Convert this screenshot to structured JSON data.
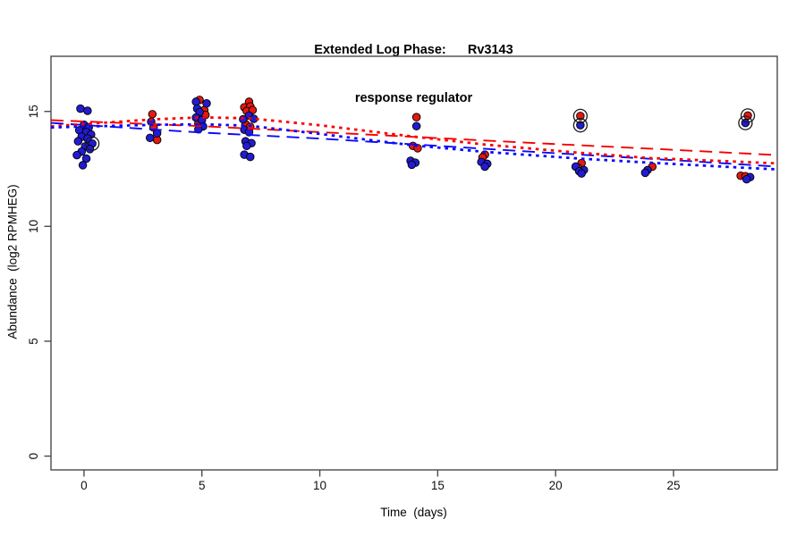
{
  "title": {
    "line1": "Extended Log Phase:      Rv3143",
    "line2": "response regulator"
  },
  "chart_data": {
    "type": "scatter",
    "title": "Extended Log Phase:      Rv3143 / response regulator",
    "xlabel": "Time  (days)",
    "ylabel": "Abundance  (log2 RPMHEG)",
    "xlim": [
      -1.4,
      29.4
    ],
    "ylim": [
      -0.6,
      17.4
    ],
    "x_ticks": [
      0,
      5,
      10,
      15,
      20,
      25
    ],
    "y_ticks": [
      0,
      5,
      10,
      15
    ],
    "grid": false,
    "legend": "none",
    "frame_color": "#4a4a4a",
    "series": [
      {
        "name": "red-condition",
        "color": "#e3190f",
        "marker": "filled-circle",
        "points": [
          [
            2.9,
            14.88
          ],
          [
            2.95,
            14.3
          ],
          [
            3.1,
            13.76
          ],
          [
            4.9,
            15.5
          ],
          [
            5.1,
            15.06
          ],
          [
            5.15,
            14.85
          ],
          [
            4.85,
            14.47
          ],
          [
            7.0,
            15.42
          ],
          [
            6.8,
            15.18
          ],
          [
            7.05,
            15.22
          ],
          [
            6.9,
            15.02
          ],
          [
            7.15,
            15.06
          ],
          [
            6.85,
            14.45
          ],
          [
            7.05,
            14.33
          ],
          [
            14.1,
            14.75
          ],
          [
            13.95,
            13.5
          ],
          [
            14.15,
            13.4
          ],
          [
            17.0,
            13.12
          ],
          [
            16.9,
            13.0
          ],
          [
            21.05,
            14.8
          ],
          [
            21.1,
            12.75
          ],
          [
            20.95,
            12.55
          ],
          [
            24.1,
            12.6
          ],
          [
            28.15,
            14.82
          ],
          [
            27.85,
            12.2
          ],
          [
            28.05,
            12.18
          ]
        ]
      },
      {
        "name": "blue-condition",
        "color": "#221bd2",
        "marker": "filled-circle",
        "points": [
          [
            -0.15,
            15.12
          ],
          [
            0.15,
            15.03
          ],
          [
            0.0,
            14.42
          ],
          [
            0.2,
            14.3
          ],
          [
            -0.2,
            14.18
          ],
          [
            0.1,
            14.1
          ],
          [
            0.3,
            14.0
          ],
          [
            -0.1,
            13.9
          ],
          [
            0.15,
            13.82
          ],
          [
            0.35,
            13.6
          ],
          [
            -0.25,
            13.7
          ],
          [
            0.05,
            13.48
          ],
          [
            0.25,
            13.36
          ],
          [
            -0.1,
            13.25
          ],
          [
            -0.3,
            13.1
          ],
          [
            0.1,
            12.95
          ],
          [
            -0.05,
            12.66
          ],
          [
            2.85,
            14.55
          ],
          [
            3.1,
            14.05
          ],
          [
            2.8,
            13.85
          ],
          [
            4.75,
            15.42
          ],
          [
            5.2,
            15.35
          ],
          [
            4.8,
            15.12
          ],
          [
            4.9,
            14.97
          ],
          [
            4.75,
            14.73
          ],
          [
            5.0,
            14.62
          ],
          [
            5.05,
            14.35
          ],
          [
            4.85,
            14.22
          ],
          [
            7.0,
            14.82
          ],
          [
            6.75,
            14.66
          ],
          [
            7.2,
            14.68
          ],
          [
            6.8,
            14.2
          ],
          [
            7.0,
            14.1
          ],
          [
            6.85,
            13.7
          ],
          [
            7.1,
            13.62
          ],
          [
            6.9,
            13.5
          ],
          [
            6.8,
            13.12
          ],
          [
            7.05,
            13.02
          ],
          [
            14.1,
            14.36
          ],
          [
            13.85,
            12.85
          ],
          [
            14.05,
            12.77
          ],
          [
            13.9,
            12.68
          ],
          [
            16.85,
            12.8
          ],
          [
            17.1,
            12.72
          ],
          [
            17.0,
            12.6
          ],
          [
            21.05,
            14.4
          ],
          [
            20.85,
            12.6
          ],
          [
            21.2,
            12.45
          ],
          [
            21.0,
            12.4
          ],
          [
            21.1,
            12.3
          ],
          [
            23.9,
            12.45
          ],
          [
            23.8,
            12.33
          ],
          [
            28.05,
            14.5
          ],
          [
            28.25,
            12.14
          ],
          [
            28.1,
            12.05
          ]
        ]
      }
    ],
    "highlighted_points": {
      "name": "open-circle-overlays",
      "color": "#1a1a1a",
      "points": [
        [
          0.35,
          13.6
        ],
        [
          21.05,
          14.8
        ],
        [
          21.05,
          14.4
        ],
        [
          28.15,
          14.82
        ],
        [
          28.05,
          14.5
        ]
      ]
    },
    "trend_lines": [
      {
        "name": "red-dashed-fit",
        "color": "#f80000",
        "linetype": "dashed",
        "points": [
          [
            -1.4,
            14.62
          ],
          [
            5,
            14.36
          ],
          [
            10,
            14.1
          ],
          [
            15,
            13.84
          ],
          [
            20,
            13.58
          ],
          [
            25,
            13.33
          ],
          [
            29.4,
            13.1
          ]
        ]
      },
      {
        "name": "blue-dashed-fit",
        "color": "#0a0af8",
        "linetype": "dashed",
        "points": [
          [
            -1.4,
            14.5
          ],
          [
            5,
            14.08
          ],
          [
            10,
            13.82
          ],
          [
            15,
            13.5
          ],
          [
            20,
            13.18
          ],
          [
            25,
            12.88
          ],
          [
            29.4,
            12.6
          ]
        ]
      },
      {
        "name": "red-dotted-fit",
        "color": "#f80000",
        "linetype": "dotted",
        "points": [
          [
            -1.4,
            14.35
          ],
          [
            0,
            14.45
          ],
          [
            3,
            14.66
          ],
          [
            5,
            14.74
          ],
          [
            7,
            14.7
          ],
          [
            10,
            14.4
          ],
          [
            14,
            13.9
          ],
          [
            17,
            13.56
          ],
          [
            21,
            13.2
          ],
          [
            24,
            12.97
          ],
          [
            28,
            12.8
          ],
          [
            29.4,
            12.74
          ]
        ]
      },
      {
        "name": "blue-dotted-fit",
        "color": "#0a0af8",
        "linetype": "dotted",
        "points": [
          [
            -1.4,
            14.3
          ],
          [
            0,
            14.34
          ],
          [
            3,
            14.42
          ],
          [
            5,
            14.44
          ],
          [
            7,
            14.38
          ],
          [
            10,
            14.02
          ],
          [
            14,
            13.52
          ],
          [
            17,
            13.24
          ],
          [
            21,
            12.95
          ],
          [
            24,
            12.77
          ],
          [
            28,
            12.55
          ],
          [
            29.4,
            12.48
          ]
        ]
      }
    ]
  }
}
